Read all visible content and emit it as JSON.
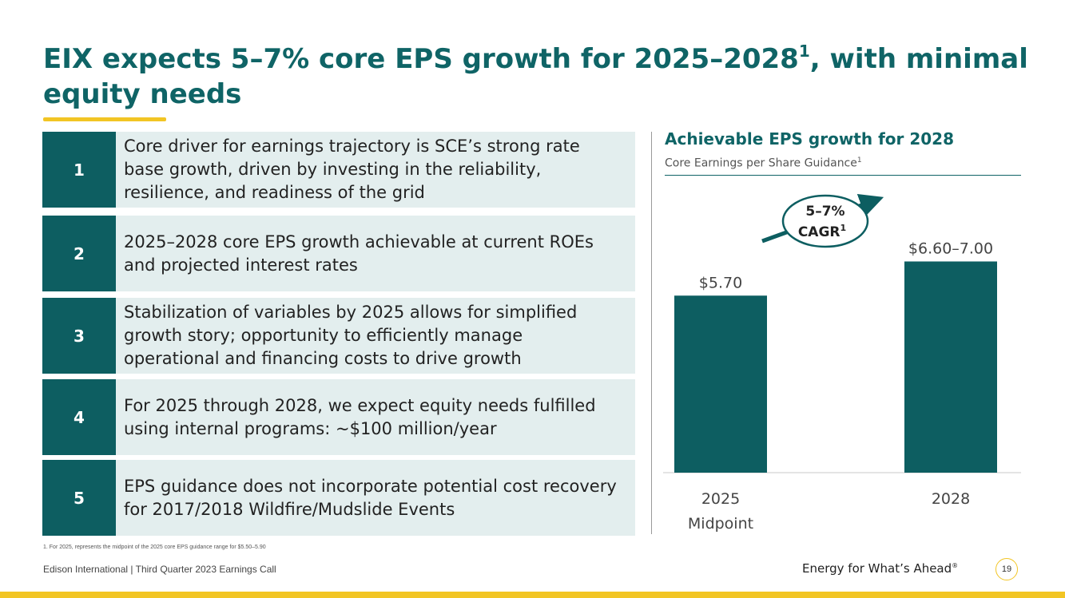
{
  "title": {
    "main": "EIX expects 5–7% core EPS growth for 2025–2028",
    "sup": "1",
    "rest": ", with minimal equity needs"
  },
  "items": [
    {
      "num": "1",
      "text": "Core driver for earnings trajectory is SCE’s strong rate base growth, driven by investing in the reliability, resilience, and readiness of the grid"
    },
    {
      "num": "2",
      "text": "2025–2028 core EPS growth achievable at current ROEs and projected interest rates"
    },
    {
      "num": "3",
      "text": "Stabilization of variables by 2025 allows for simplified growth story; opportunity to efficiently manage operational and financing costs to drive growth"
    },
    {
      "num": "4",
      "text": "For 2025 through 2028, we expect equity needs fulfilled using internal programs: ~$100 million/year"
    },
    {
      "num": "5",
      "text": "EPS guidance does not incorporate potential cost recovery for 2017/2018 Wildfire/Mudslide Events"
    }
  ],
  "chart_panel": {
    "title": "Achievable EPS growth for 2028",
    "subtitle": "Core Earnings per Share Guidance",
    "subtitle_sup": "1"
  },
  "chart_data": {
    "type": "bar",
    "categories": [
      [
        "2025",
        "Midpoint"
      ],
      [
        "2028"
      ]
    ],
    "values": [
      5.7,
      6.8
    ],
    "data_labels": [
      "$5.70",
      "$6.60–7.00"
    ],
    "ylim": [
      0,
      7.6
    ],
    "annotation": {
      "line1": "5–7%",
      "line2": "CAGR",
      "sup": "1"
    },
    "bar_color": "#0d5e61"
  },
  "footnote": "1.  For 2025, represents the midpoint of the 2025 core EPS guidance range for $5.50–5.90",
  "footer": {
    "left": "Edison International |  Third Quarter 2023 Earnings Call",
    "tagline": "Energy for What’s Ahead",
    "tagline_mark": "®",
    "page": "19"
  },
  "colors": {
    "teal": "#0d5e61",
    "light_teal": "#e3eeee",
    "yellow": "#f2c524"
  }
}
